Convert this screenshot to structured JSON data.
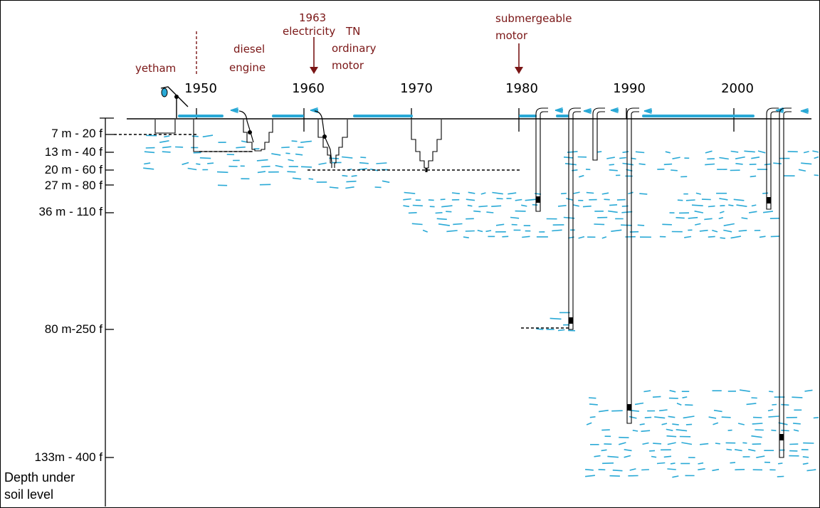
{
  "colors": {
    "water": "#29a9d6",
    "annotation": "#7a1616",
    "ink": "#000000"
  },
  "timeline": {
    "years": [
      "1950",
      "1960",
      "1970",
      "1980",
      "1990",
      "2000"
    ]
  },
  "depth_axis": {
    "labels": [
      "7 m - 20 f",
      "13 m - 40 f",
      "20 m - 60 f",
      "27 m - 80 f",
      "36 m - 110 f",
      "80 m-250 f",
      "133m - 400 f"
    ],
    "title_line1": "Depth under",
    "title_line2": "soil level"
  },
  "annotations": {
    "yetham": "yetham",
    "diesel_line1": "diesel",
    "diesel_line2": "engine",
    "electricity_year": "1963",
    "electricity": "electricity",
    "tn": "TN",
    "ordinary_line1": "ordinary",
    "ordinary_line2": "motor",
    "submergeable_line1": "submergeable",
    "submergeable_line2": "motor"
  },
  "icons": {
    "water_layers": "water-layer-dashes",
    "wells": "stepped-well-shapes",
    "borewells": "borewell-pipes",
    "sprays": "water-spray-icons"
  }
}
